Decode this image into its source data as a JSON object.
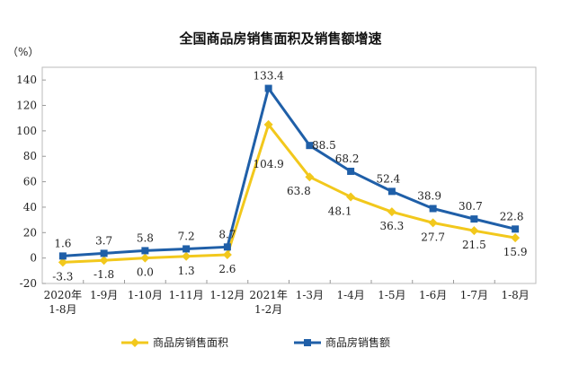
{
  "chart_data": {
    "type": "line",
    "title": "全国商品房销售面积及销售额增速",
    "ylabel": "（%）",
    "xlabel": "",
    "ylim": [
      -20,
      150
    ],
    "yticks": [
      -20,
      0,
      20,
      40,
      60,
      80,
      100,
      120,
      140
    ],
    "categories": [
      "2020年\n1-8月",
      "1-9月",
      "1-10月",
      "1-11月",
      "1-12月",
      "2021年\n1-2月",
      "1-3月",
      "1-4月",
      "1-5月",
      "1-6月",
      "1-7月",
      "1-8月"
    ],
    "series": [
      {
        "name": "商品房销售面积",
        "color": "#f2c81c",
        "marker": "diamond",
        "values": [
          -3.3,
          -1.8,
          0.0,
          1.3,
          2.6,
          104.9,
          63.8,
          48.1,
          36.3,
          27.7,
          21.5,
          15.9
        ],
        "labels": [
          "-3.3",
          "-1.8",
          "0.0",
          "1.3",
          "2.6",
          "104.9",
          "63.8",
          "48.1",
          "36.3",
          "27.7",
          "21.5",
          "15.9"
        ]
      },
      {
        "name": "商品房销售额",
        "color": "#1f5fa8",
        "marker": "square",
        "values": [
          1.6,
          3.7,
          5.8,
          7.2,
          8.7,
          133.4,
          88.5,
          68.2,
          52.4,
          38.9,
          30.7,
          22.8
        ],
        "labels": [
          "1.6",
          "3.7",
          "5.8",
          "7.2",
          "8.7",
          "133.4",
          "88.5",
          "68.2",
          "52.4",
          "38.9",
          "30.7",
          "22.8"
        ]
      }
    ],
    "grid": false,
    "legend": "bottom"
  }
}
